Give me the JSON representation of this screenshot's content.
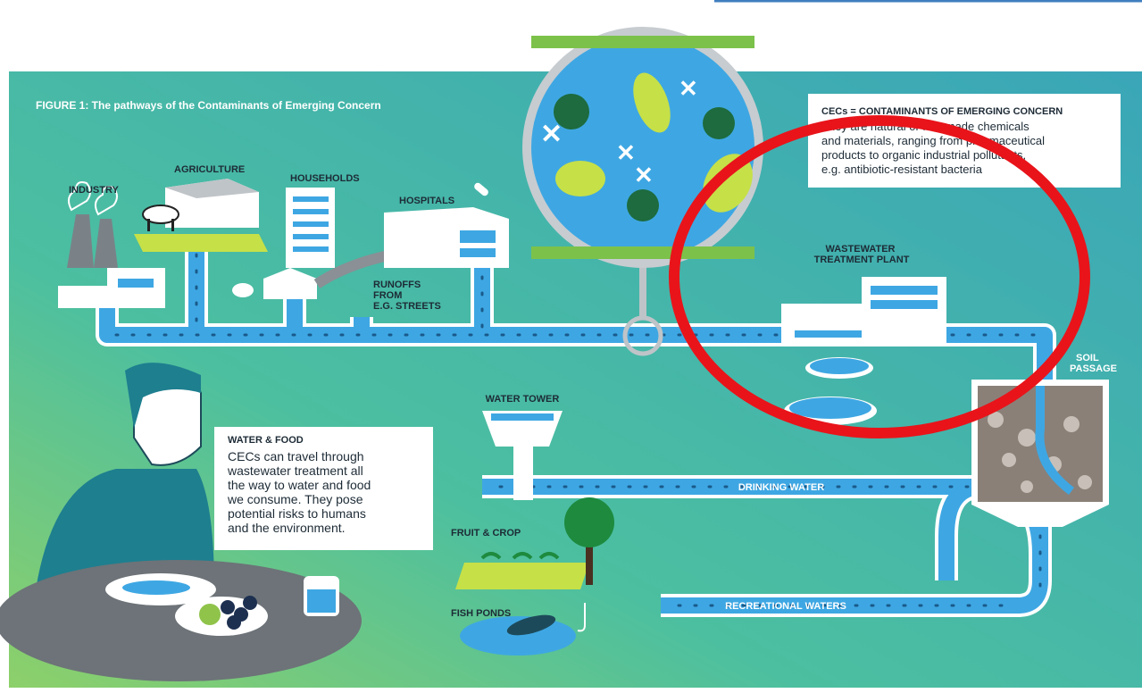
{
  "figure": {
    "title": "FIGURE 1: The pathways of the Contaminants of Emerging Concern"
  },
  "labels": {
    "industry": "INDUSTRY",
    "agriculture": "AGRICULTURE",
    "households": "HOUSEHOLDS",
    "hospitals": "HOSPITALS",
    "runoffs": [
      "RUNOFFS",
      "FROM",
      "E.G. STREETS"
    ],
    "wastewater": [
      "WASTEWATER",
      "TREATMENT PLANT"
    ],
    "soil": [
      "SOIL",
      "PASSAGE"
    ],
    "water_tower": "WATER TOWER",
    "drinking_water": "DRINKING WATER",
    "fruit_crop": "FRUIT & CROP",
    "fish_ponds": "FISH PONDS",
    "recreational_waters": "RECREATIONAL WATERS"
  },
  "cec_box": {
    "heading": "CECs = CONTAMINANTS OF EMERGING CONCERN",
    "lines": [
      "They are natural or manmade chemicals",
      "and materials, ranging from pharmaceutical",
      "products to organic industrial pollutants,",
      "e.g. antibiotic-resistant bacteria"
    ]
  },
  "food_box": {
    "heading": "WATER & FOOD",
    "lines": [
      "CECs can travel through",
      "wastewater treatment all",
      "the way to water and food",
      "we consume. They pose",
      "potential risks to humans",
      "and the environment."
    ]
  }
}
